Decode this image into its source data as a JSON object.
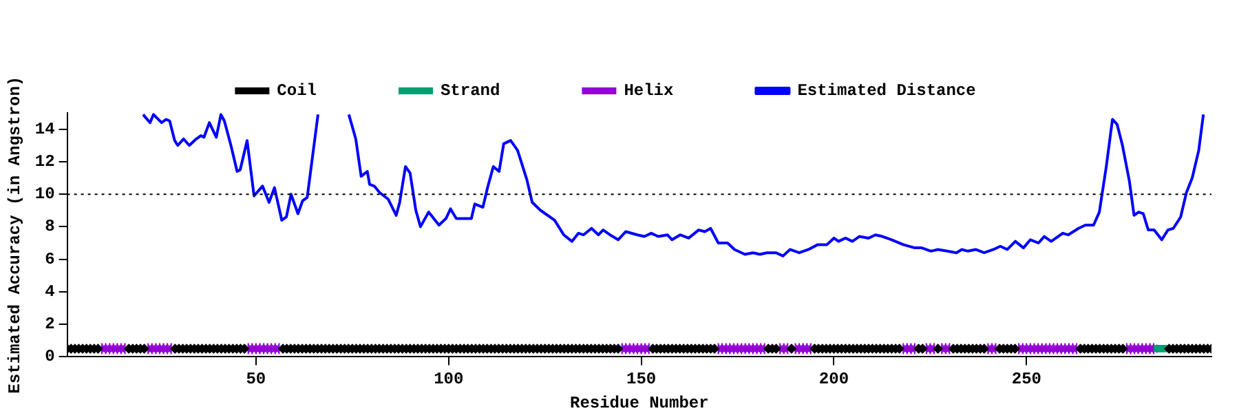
{
  "chart_data": {
    "type": "line",
    "xlabel": "Residue Number",
    "ylabel": "Estimated Accuracy (in Angstron)",
    "xlim": [
      1,
      298
    ],
    "xticks": [
      50,
      100,
      150,
      200,
      250
    ],
    "ylim": [
      0,
      15
    ],
    "yticks": [
      0,
      2,
      4,
      6,
      8,
      10,
      12,
      14
    ],
    "grid": false,
    "legend": "top",
    "ref_lines": [
      {
        "axis": "y",
        "value": 10,
        "color": "#000000",
        "line_style": "dotted"
      }
    ],
    "series": [
      {
        "name": "Estimated Distance",
        "type": "line",
        "color": "#0000ff",
        "marker": "none",
        "line_style": "solid",
        "x": [
          20.7,
          22.5,
          23.4,
          25.5,
          26.7,
          27.6,
          28.9,
          29.7,
          31.2,
          32.7,
          34.5,
          35.7,
          36.5,
          37.9,
          39.7,
          40.9,
          41.8,
          43.5,
          45.1,
          45.9,
          47.7,
          49.5,
          51.7,
          53.4,
          54.8,
          56.7,
          57.9,
          59.1,
          60.9,
          62.1,
          63.3,
          66.1,
          70,
          74.1,
          75.9,
          77.3,
          78.9,
          79.5,
          80.7,
          82.1,
          84.3,
          86.4,
          87.3,
          88.8,
          90,
          91.5,
          92.7,
          94.8,
          97.5,
          99.3,
          100.5,
          102.0,
          104.7,
          105.9,
          106.8,
          108.9,
          110.1,
          111.6,
          113.1,
          114.3,
          116.1,
          117.9,
          120.3,
          121.7,
          123.9,
          127.5,
          129.9,
          132,
          133.7,
          135,
          137.1,
          138.9,
          140.1,
          141.9,
          144,
          146,
          149,
          150.8,
          152.6,
          154.4,
          156.8,
          158,
          160.1,
          162.3,
          164.9,
          166.5,
          168,
          170,
          172.4,
          174.2,
          176.9,
          179,
          180.8,
          182.6,
          185,
          186.8,
          188.6,
          191,
          193.4,
          195.8,
          198.2,
          200,
          201.2,
          203,
          204.8,
          206.6,
          209,
          210.8,
          212.6,
          215,
          218,
          221,
          222.8,
          225.2,
          227,
          229.4,
          231.8,
          233.2,
          234.8,
          236.8,
          239,
          241.4,
          243.2,
          245,
          247.1,
          249.2,
          251,
          253.1,
          254.6,
          256.4,
          259.4,
          260.8,
          263.5,
          265.3,
          267.4,
          268.9,
          270.7,
          272.3,
          273.5,
          274.9,
          276.7,
          277.9,
          279.1,
          280.3,
          281.6,
          283.1,
          285.1,
          286.7,
          288.1,
          290,
          291.5,
          293,
          294.7,
          295.9
        ],
        "values": [
          14.9,
          14.4,
          14.9,
          14.4,
          14.6,
          14.5,
          13.3,
          13.0,
          13.4,
          13.0,
          13.4,
          13.6,
          13.5,
          14.4,
          13.5,
          14.9,
          14.5,
          13.0,
          11.4,
          11.5,
          13.3,
          9.9,
          10.5,
          9.5,
          10.4,
          8.4,
          8.6,
          10.0,
          8.8,
          9.6,
          9.8,
          14.9,
          null,
          14.9,
          13.4,
          11.1,
          11.4,
          10.6,
          10.5,
          10.1,
          9.7,
          8.7,
          9.5,
          11.7,
          11.3,
          9.0,
          8.0,
          8.9,
          8.1,
          8.5,
          9.1,
          8.5,
          8.5,
          8.5,
          9.4,
          9.2,
          10.4,
          11.7,
          11.4,
          13.1,
          13.3,
          12.7,
          10.9,
          9.5,
          9.0,
          8.4,
          7.5,
          7.1,
          7.6,
          7.5,
          7.9,
          7.5,
          7.8,
          7.5,
          7.2,
          7.7,
          7.5,
          7.4,
          7.6,
          7.4,
          7.5,
          7.2,
          7.5,
          7.3,
          7.8,
          7.7,
          7.9,
          7.0,
          7.0,
          6.6,
          6.3,
          6.4,
          6.3,
          6.4,
          6.4,
          6.2,
          6.6,
          6.4,
          6.6,
          6.9,
          6.9,
          7.3,
          7.1,
          7.3,
          7.1,
          7.4,
          7.3,
          7.5,
          7.4,
          7.2,
          6.9,
          6.7,
          6.7,
          6.5,
          6.6,
          6.5,
          6.4,
          6.6,
          6.5,
          6.6,
          6.4,
          6.6,
          6.8,
          6.6,
          7.1,
          6.7,
          7.2,
          7.0,
          7.4,
          7.1,
          7.6,
          7.5,
          7.9,
          8.1,
          8.1,
          8.9,
          11.7,
          14.6,
          14.3,
          13.0,
          10.8,
          8.7,
          8.9,
          8.8,
          7.8,
          7.8,
          7.2,
          7.8,
          7.9,
          8.6,
          10.1,
          11.0,
          12.7,
          14.9
        ]
      },
      {
        "name": "Helix",
        "type": "scatter",
        "color": "#9400d3",
        "marker": "cross",
        "x": [
          10,
          11,
          12,
          13,
          14,
          15,
          16,
          22,
          23,
          24,
          25,
          26,
          27,
          28,
          48,
          49,
          50,
          51,
          52,
          53,
          54,
          55,
          56,
          145,
          146,
          147,
          148,
          149,
          150,
          151,
          152,
          170,
          171,
          172,
          173,
          174,
          175,
          176,
          177,
          178,
          179,
          180,
          181,
          182,
          186,
          187,
          188,
          190,
          191,
          192,
          193,
          194,
          218,
          219,
          220,
          221,
          224,
          225,
          226,
          228,
          229,
          230,
          240,
          241,
          242,
          248,
          249,
          250,
          251,
          252,
          253,
          254,
          255,
          256,
          257,
          258,
          259,
          260,
          261,
          262,
          263,
          276,
          277,
          278,
          279,
          280,
          281,
          282,
          283
        ],
        "values": [
          0.5,
          0.5,
          0.5,
          0.5,
          0.5,
          0.5,
          0.5,
          0.5,
          0.5,
          0.5,
          0.5,
          0.5,
          0.5,
          0.5,
          0.5,
          0.5,
          0.5,
          0.5,
          0.5,
          0.5,
          0.5,
          0.5,
          0.5,
          0.5,
          0.5,
          0.5,
          0.5,
          0.5,
          0.5,
          0.5,
          0.5,
          0.5,
          0.5,
          0.5,
          0.5,
          0.5,
          0.5,
          0.5,
          0.5,
          0.5,
          0.5,
          0.5,
          0.5,
          0.5,
          0.5,
          0.5,
          0.5,
          0.5,
          0.5,
          0.5,
          0.5,
          0.5,
          0.5,
          0.5,
          0.5,
          0.5,
          0.5,
          0.5,
          0.5,
          0.5,
          0.5,
          0.5,
          0.5,
          0.5,
          0.5,
          0.5,
          0.5,
          0.5,
          0.5,
          0.5,
          0.5,
          0.5,
          0.5,
          0.5,
          0.5,
          0.5,
          0.5,
          0.5,
          0.5,
          0.5,
          0.5,
          0.5,
          0.5,
          0.5,
          0.5,
          0.5,
          0.5,
          0.5,
          0.5
        ]
      },
      {
        "name": "Strand",
        "type": "scatter",
        "color": "#009e73",
        "marker": "square",
        "x": [
          284,
          285,
          286
        ],
        "values": [
          0.5,
          0.5,
          0.5
        ]
      },
      {
        "name": "Coil",
        "type": "scatter",
        "color": "#000000",
        "marker": "diamond",
        "x": [
          1,
          2,
          3,
          4,
          5,
          6,
          7,
          8,
          9,
          17,
          18,
          19,
          20,
          21,
          29,
          30,
          31,
          32,
          33,
          34,
          35,
          36,
          37,
          38,
          39,
          40,
          41,
          42,
          43,
          44,
          45,
          46,
          47,
          57,
          58,
          59,
          60,
          61,
          62,
          63,
          64,
          65,
          66,
          67,
          68,
          69,
          70,
          71,
          72,
          73,
          74,
          75,
          76,
          77,
          78,
          79,
          80,
          81,
          82,
          83,
          84,
          85,
          86,
          87,
          88,
          89,
          90,
          91,
          92,
          93,
          94,
          95,
          96,
          97,
          98,
          99,
          100,
          101,
          102,
          103,
          104,
          105,
          106,
          107,
          108,
          109,
          110,
          111,
          112,
          113,
          114,
          115,
          116,
          117,
          118,
          119,
          120,
          121,
          122,
          123,
          124,
          125,
          126,
          127,
          128,
          129,
          130,
          131,
          132,
          133,
          134,
          135,
          136,
          137,
          138,
          139,
          140,
          141,
          142,
          143,
          144,
          153,
          154,
          155,
          156,
          157,
          158,
          159,
          160,
          161,
          162,
          163,
          164,
          165,
          166,
          167,
          168,
          169,
          183,
          184,
          185,
          189,
          195,
          196,
          197,
          198,
          199,
          200,
          201,
          202,
          203,
          204,
          205,
          206,
          207,
          208,
          209,
          210,
          211,
          212,
          213,
          214,
          215,
          216,
          217,
          222,
          223,
          227,
          231,
          232,
          233,
          234,
          235,
          236,
          237,
          238,
          239,
          243,
          244,
          245,
          246,
          247,
          264,
          265,
          266,
          267,
          268,
          269,
          270,
          271,
          272,
          273,
          274,
          275,
          287,
          288,
          289,
          290,
          291,
          292,
          293,
          294,
          295,
          296,
          297,
          298
        ],
        "values": [
          0.5,
          0.5,
          0.5,
          0.5,
          0.5,
          0.5,
          0.5,
          0.5,
          0.5,
          0.5,
          0.5,
          0.5,
          0.5,
          0.5,
          0.5,
          0.5,
          0.5,
          0.5,
          0.5,
          0.5,
          0.5,
          0.5,
          0.5,
          0.5,
          0.5,
          0.5,
          0.5,
          0.5,
          0.5,
          0.5,
          0.5,
          0.5,
          0.5,
          0.5,
          0.5,
          0.5,
          0.5,
          0.5,
          0.5,
          0.5,
          0.5,
          0.5,
          0.5,
          0.5,
          0.5,
          0.5,
          0.5,
          0.5,
          0.5,
          0.5,
          0.5,
          0.5,
          0.5,
          0.5,
          0.5,
          0.5,
          0.5,
          0.5,
          0.5,
          0.5,
          0.5,
          0.5,
          0.5,
          0.5,
          0.5,
          0.5,
          0.5,
          0.5,
          0.5,
          0.5,
          0.5,
          0.5,
          0.5,
          0.5,
          0.5,
          0.5,
          0.5,
          0.5,
          0.5,
          0.5,
          0.5,
          0.5,
          0.5,
          0.5,
          0.5,
          0.5,
          0.5,
          0.5,
          0.5,
          0.5,
          0.5,
          0.5,
          0.5,
          0.5,
          0.5,
          0.5,
          0.5,
          0.5,
          0.5,
          0.5,
          0.5,
          0.5,
          0.5,
          0.5,
          0.5,
          0.5,
          0.5,
          0.5,
          0.5,
          0.5,
          0.5,
          0.5,
          0.5,
          0.5,
          0.5,
          0.5,
          0.5,
          0.5,
          0.5,
          0.5,
          0.5,
          0.5,
          0.5,
          0.5,
          0.5,
          0.5,
          0.5,
          0.5,
          0.5,
          0.5,
          0.5,
          0.5,
          0.5,
          0.5,
          0.5,
          0.5,
          0.5,
          0.5,
          0.5,
          0.5,
          0.5,
          0.5,
          0.5,
          0.5,
          0.5,
          0.5,
          0.5,
          0.5,
          0.5,
          0.5,
          0.5,
          0.5,
          0.5,
          0.5,
          0.5,
          0.5,
          0.5,
          0.5,
          0.5,
          0.5,
          0.5,
          0.5,
          0.5,
          0.5,
          0.5,
          0.5,
          0.5,
          0.5,
          0.5,
          0.5,
          0.5,
          0.5,
          0.5,
          0.5,
          0.5,
          0.5,
          0.5,
          0.5,
          0.5,
          0.5,
          0.5,
          0.5,
          0.5,
          0.5,
          0.5,
          0.5,
          0.5,
          0.5,
          0.5,
          0.5,
          0.5,
          0.5,
          0.5,
          0.5,
          0.5,
          0.5,
          0.5,
          0.5,
          0.5,
          0.5,
          0.5,
          0.5,
          0.5,
          0.5,
          0.5,
          0.5
        ]
      }
    ]
  }
}
